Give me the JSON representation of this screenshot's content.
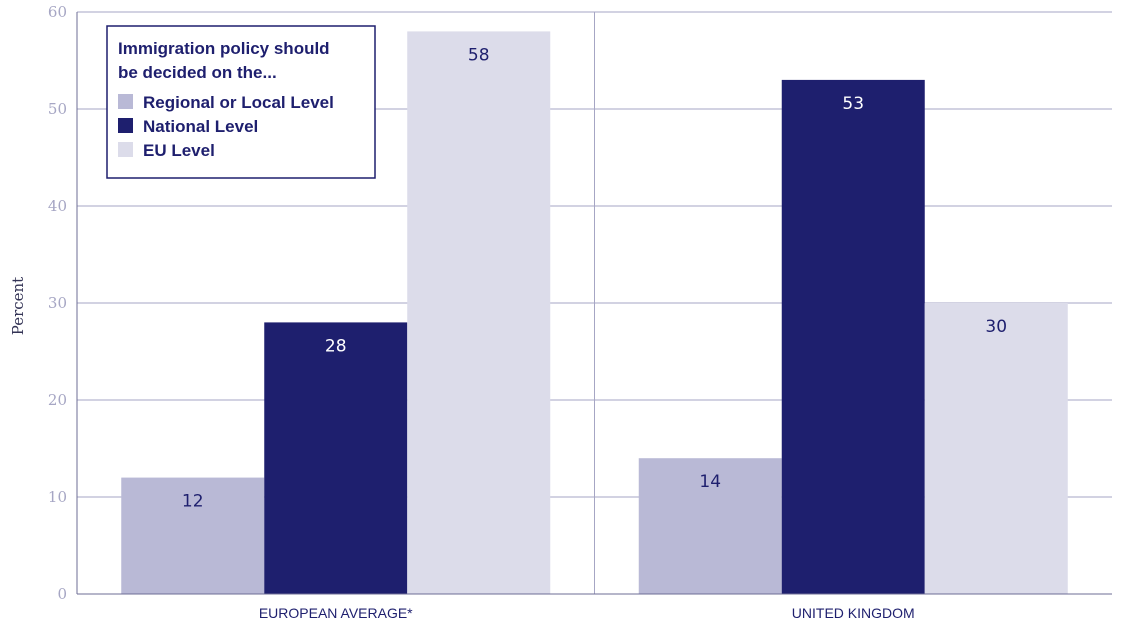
{
  "chart_data": {
    "type": "bar",
    "ylabel": "Percent",
    "xlabel": "",
    "ylim": [
      0,
      60
    ],
    "yticks": [
      0,
      10,
      20,
      30,
      40,
      50,
      60
    ],
    "grid": true,
    "legend_placement": "top-left",
    "categories": [
      "EUROPEAN AVERAGE*",
      "UNITED KINGDOM"
    ],
    "legend_title_lines": [
      "Immigration policy should",
      "be decided on the..."
    ],
    "series": [
      {
        "name": "Regional or Local Level",
        "color": "#b9b9d6",
        "label_color": "#1e1f6e",
        "values": [
          12,
          14
        ]
      },
      {
        "name": "National Level",
        "color": "#1e1f6e",
        "label_color": "#ffffff",
        "values": [
          28,
          53
        ]
      },
      {
        "name": "EU Level",
        "color": "#dcdcea",
        "label_color": "#1e1f6e",
        "values": [
          58,
          30
        ]
      }
    ]
  },
  "colors": {
    "grid": "#a6a6c4",
    "axis": "#6d6d96",
    "legend_border": "#1e1f6e"
  }
}
